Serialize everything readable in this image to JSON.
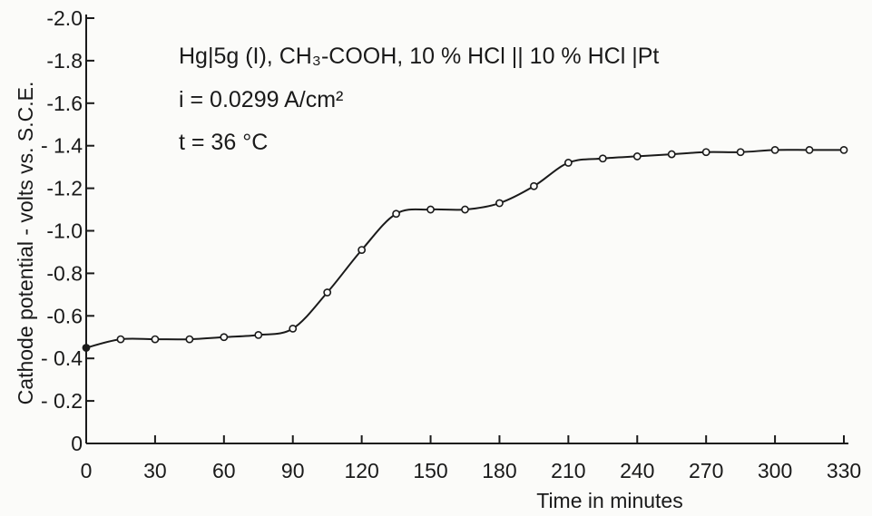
{
  "chart_data": {
    "type": "line",
    "title": "",
    "xlabel": "Time in minutes",
    "ylabel": "Cathode  potential - volts vs. S.C.E.",
    "xlim": [
      0,
      330
    ],
    "ylim": [
      0,
      2.0
    ],
    "grid": false,
    "x_ticks": [
      0,
      30,
      60,
      90,
      120,
      150,
      180,
      210,
      240,
      270,
      300,
      330
    ],
    "y_ticks": [
      0,
      0.2,
      0.4,
      0.6,
      0.8,
      1.0,
      1.2,
      1.4,
      1.6,
      1.8,
      2.0
    ],
    "x_tick_labels": [
      "0",
      "30",
      "60",
      "90",
      "120",
      "150",
      "180",
      "210",
      "240",
      "270",
      "300",
      "330"
    ],
    "y_tick_labels": [
      "0",
      "- 0.2",
      "- 0.4",
      "-0.6",
      "-0.8",
      "-1.0",
      "-1.2",
      "- 1.4",
      "-1.6",
      "-1.8",
      "-2.0"
    ],
    "annotations": [
      "Hg|5g (I), CH₃-COOH, 10 % HCl || 10 % HCl |Pt",
      "i = 0.0299 A/cm²",
      "t = 36 °C"
    ],
    "series": [
      {
        "x": [
          0,
          15,
          30,
          45,
          60,
          75,
          90,
          105,
          120,
          135,
          150,
          165,
          180,
          195,
          210,
          225,
          240,
          255,
          270,
          285,
          300,
          315,
          330
        ],
        "y": [
          0.45,
          0.49,
          0.49,
          0.49,
          0.5,
          0.51,
          0.54,
          0.71,
          0.91,
          1.08,
          1.1,
          1.1,
          1.13,
          1.21,
          1.32,
          1.34,
          1.35,
          1.36,
          1.37,
          1.37,
          1.38,
          1.38,
          1.38
        ],
        "first_point_filled": true
      }
    ]
  }
}
